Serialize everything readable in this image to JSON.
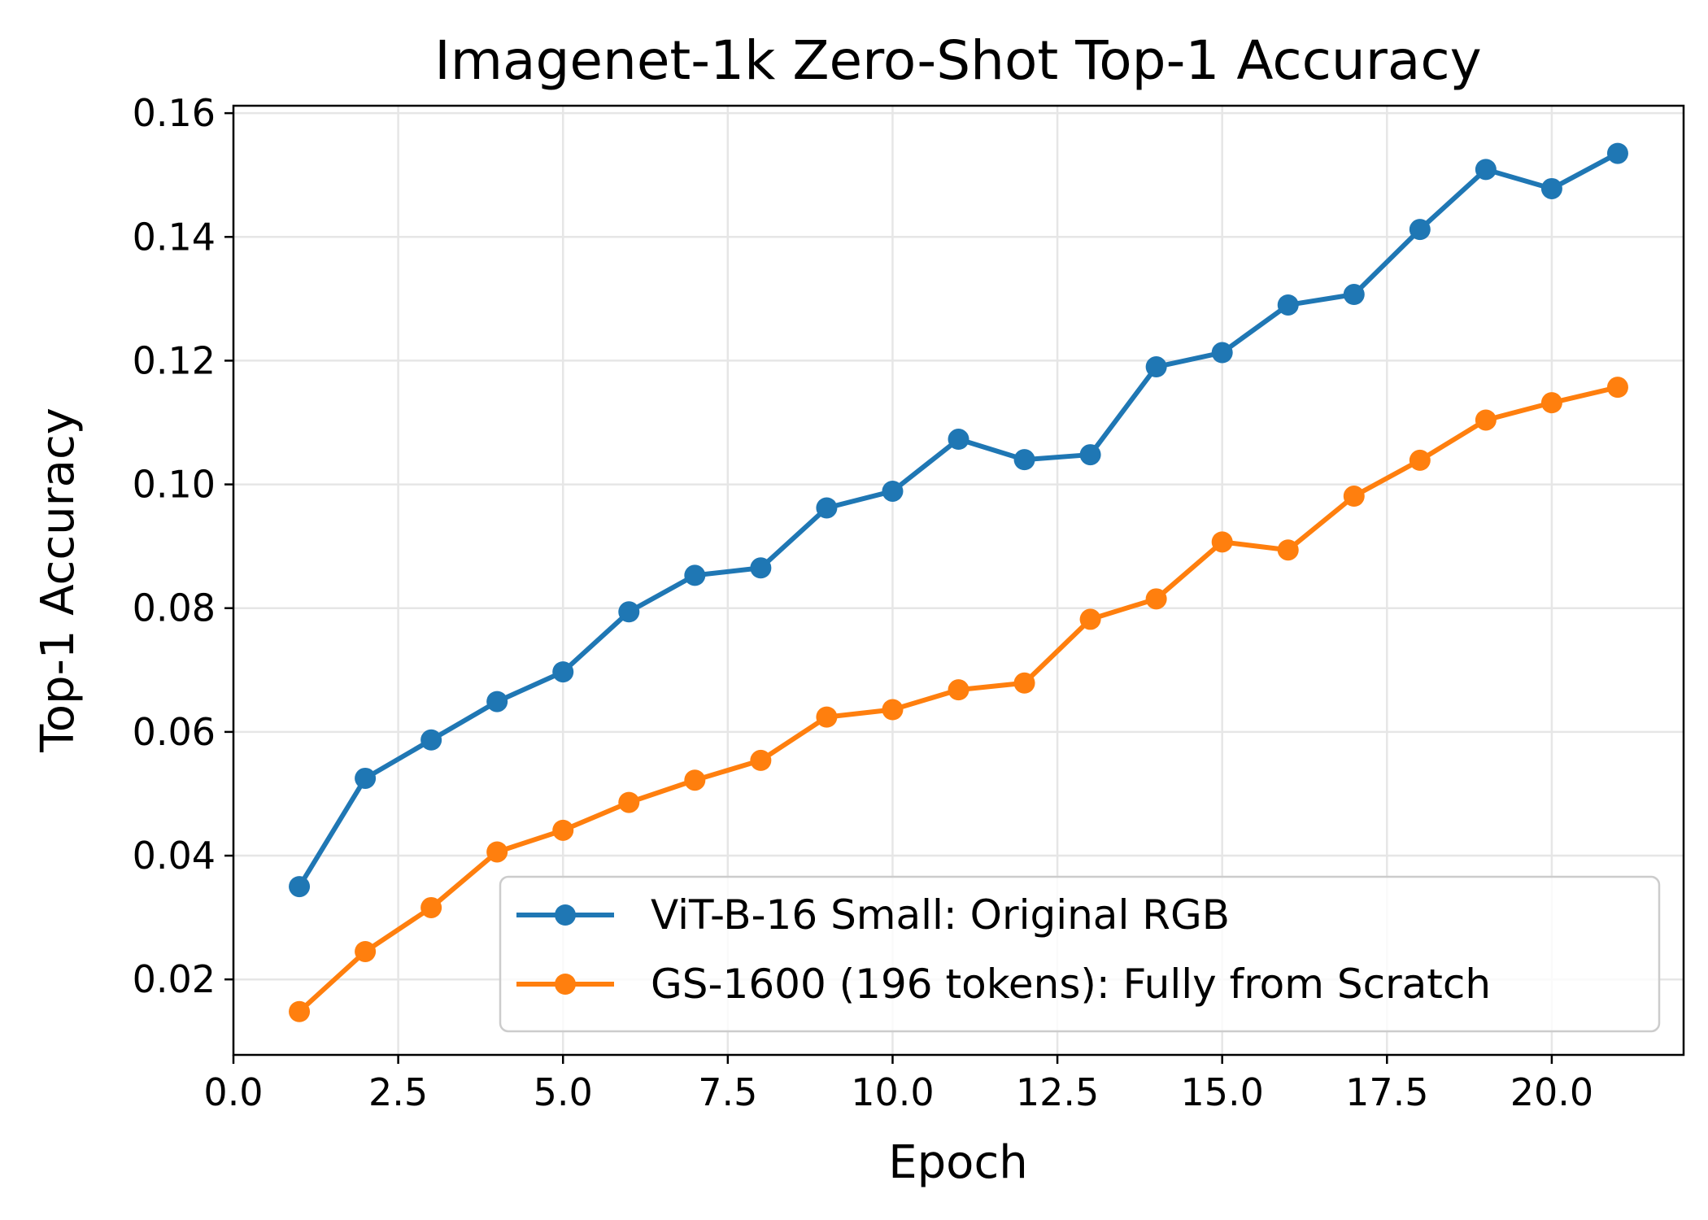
{
  "chart_data": {
    "type": "line",
    "title": "Imagenet-1k Zero-Shot Top-1 Accuracy",
    "xlabel": "Epoch",
    "ylabel": "Top-1 Accuracy",
    "xlim": [
      0,
      22
    ],
    "ylim": [
      0.0078,
      0.1612
    ],
    "xticks": [
      0,
      2.5,
      5,
      7.5,
      10,
      12.5,
      15,
      17.5,
      20
    ],
    "xtick_labels": [
      "0.0",
      "2.5",
      "5.0",
      "7.5",
      "10.0",
      "12.5",
      "15.0",
      "17.5",
      "20.0"
    ],
    "yticks": [
      0.02,
      0.04,
      0.06,
      0.08,
      0.1,
      0.12,
      0.14,
      0.16
    ],
    "ytick_labels": [
      "0.02",
      "0.04",
      "0.06",
      "0.08",
      "0.10",
      "0.12",
      "0.14",
      "0.16"
    ],
    "grid": true,
    "legend_position": "bottom-right",
    "x": [
      1,
      2,
      3,
      4,
      5,
      6,
      7,
      8,
      9,
      10,
      11,
      12,
      13,
      14,
      15,
      16,
      17,
      18,
      19,
      20,
      21
    ],
    "series": [
      {
        "name": "ViT-B-16 Small: Original RGB",
        "color": "#1f77b4",
        "values": [
          0.035,
          0.0525,
          0.0587,
          0.0649,
          0.0697,
          0.0794,
          0.0853,
          0.0865,
          0.0962,
          0.0989,
          0.1073,
          0.104,
          0.1048,
          0.119,
          0.1213,
          0.129,
          0.1307,
          0.1412,
          0.1509,
          0.1478,
          0.1535
        ]
      },
      {
        "name": "GS-1600 (196 tokens): Fully from Scratch",
        "color": "#ff7f0e",
        "values": [
          0.0148,
          0.0245,
          0.0316,
          0.0406,
          0.0441,
          0.0486,
          0.0522,
          0.0554,
          0.0624,
          0.0636,
          0.0668,
          0.0679,
          0.0782,
          0.0815,
          0.0907,
          0.0894,
          0.0981,
          0.1039,
          0.1104,
          0.1132,
          0.1157
        ]
      }
    ]
  }
}
